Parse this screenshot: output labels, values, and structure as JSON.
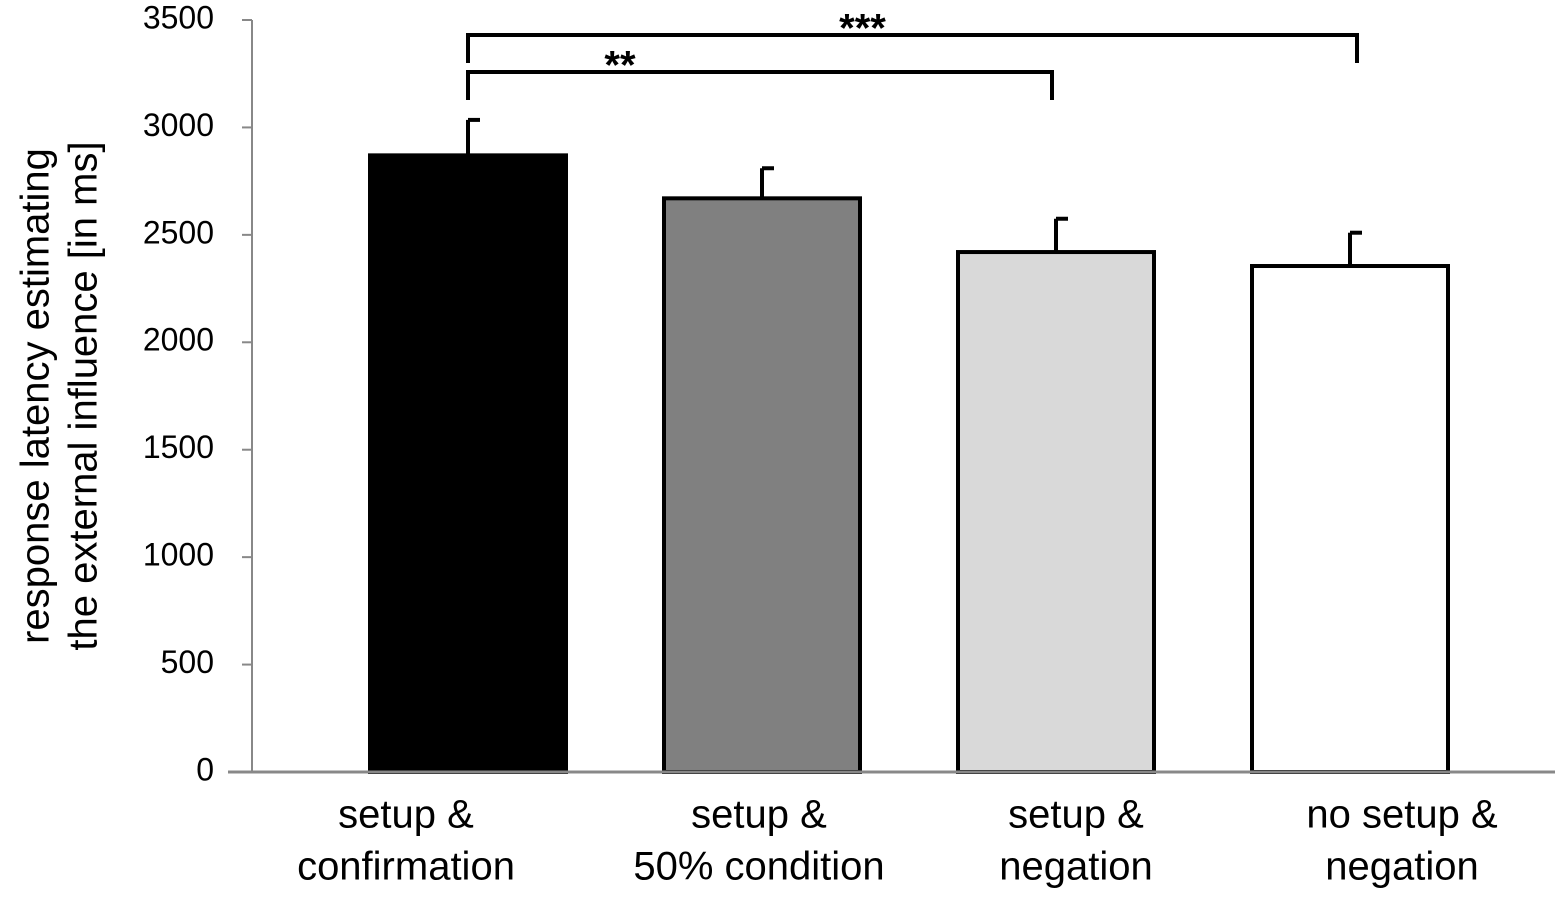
{
  "chart_data": {
    "type": "bar",
    "ylabel": [
      "response latency estimating",
      "the external influence [in ms]"
    ],
    "categories": [
      [
        "setup &",
        "confirmation"
      ],
      [
        "setup &",
        "50% condition"
      ],
      [
        "setup &",
        "negation"
      ],
      [
        "no setup &",
        "negation"
      ]
    ],
    "values": [
      2870,
      2670,
      2420,
      2355
    ],
    "errors": [
      165,
      140,
      155,
      155
    ],
    "colors": [
      "#000000",
      "#808080",
      "#d9d9d9",
      "#ffffff"
    ],
    "ylim": [
      0,
      3500
    ],
    "yticks": [
      0,
      500,
      1000,
      1500,
      2000,
      2500,
      3000,
      3500
    ],
    "significance": [
      {
        "label": "**",
        "categories": [
          0,
          2
        ]
      },
      {
        "label": "***",
        "categories": [
          0,
          3
        ]
      }
    ]
  }
}
